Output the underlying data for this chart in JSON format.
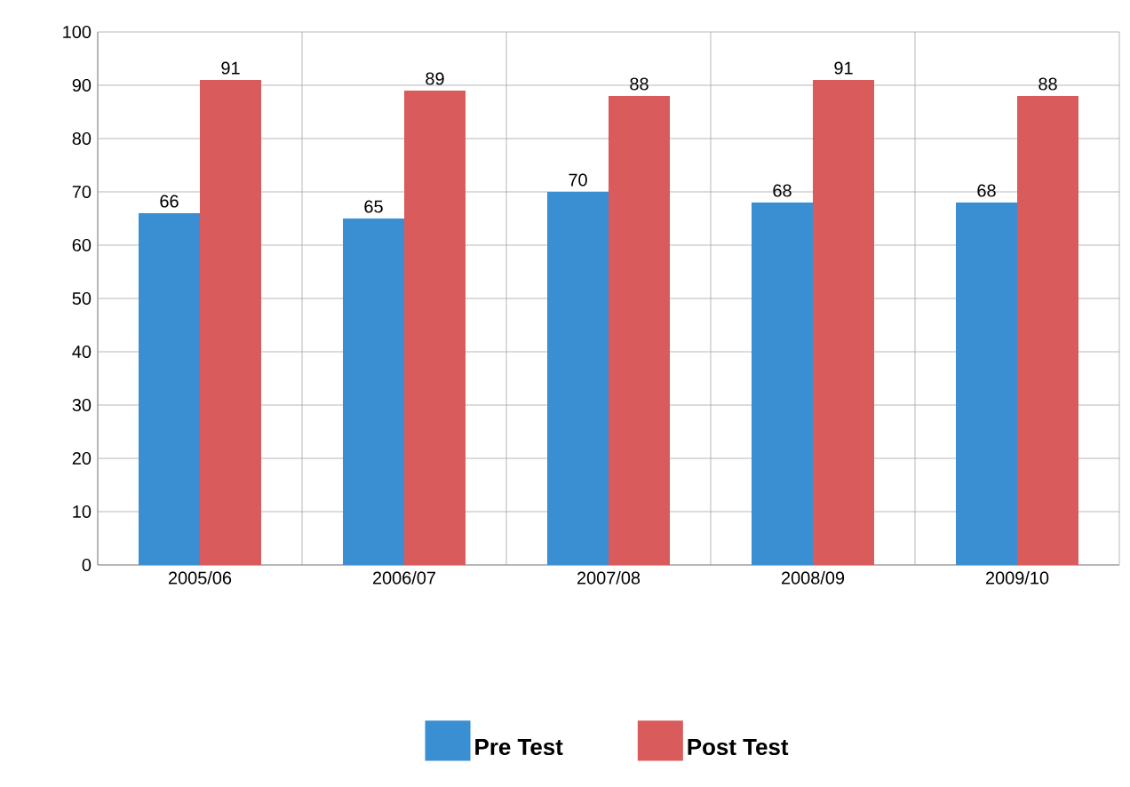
{
  "chart_data": {
    "type": "bar",
    "categories": [
      "2005/06",
      "2006/07",
      "2007/08",
      "2008/09",
      "2009/10"
    ],
    "series": [
      {
        "name": "Pre Test",
        "color": "#3a8fd2",
        "values": [
          66,
          65,
          70,
          68,
          68
        ]
      },
      {
        "name": "Post Test",
        "color": "#d95b5b",
        "values": [
          91,
          89,
          88,
          91,
          88
        ]
      }
    ],
    "ylim": [
      0,
      100
    ],
    "yticks": [
      0,
      10,
      20,
      30,
      40,
      50,
      60,
      70,
      80,
      90,
      100
    ],
    "grid": true,
    "legend": "bottom",
    "data_labels": true
  }
}
